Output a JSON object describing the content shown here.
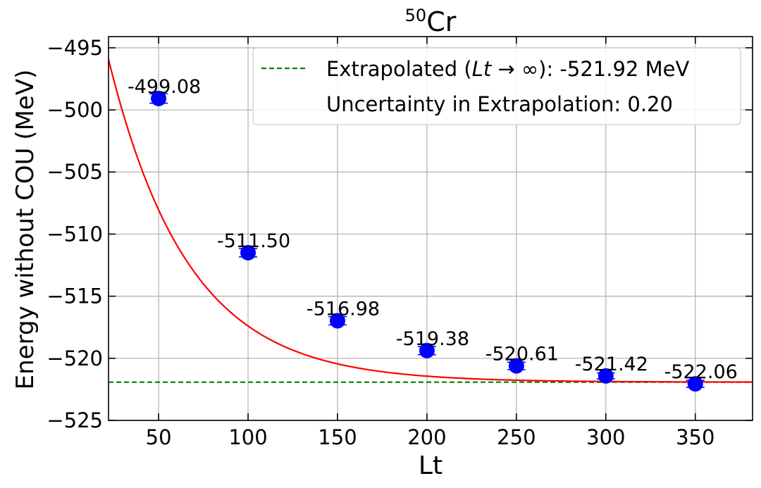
{
  "chart_data": {
    "type": "scatter",
    "title_superscript": "50",
    "title_main": "Cr",
    "xlabel": "Lt",
    "ylabel": "Energy without COU (MeV)",
    "xlim": [
      22,
      382
    ],
    "ylim": [
      -525,
      -494.1
    ],
    "xticks": [
      50,
      100,
      150,
      200,
      250,
      300,
      350
    ],
    "yticks": [
      -525,
      -520,
      -515,
      -510,
      -505,
      -500,
      -495
    ],
    "tick_labels_x": [
      "50",
      "100",
      "150",
      "200",
      "250",
      "300",
      "350"
    ],
    "tick_labels_y": [
      "−525",
      "−520",
      "−515",
      "−510",
      "−505",
      "−500",
      "−495"
    ],
    "grid": true,
    "points": {
      "x": [
        50,
        100,
        150,
        200,
        250,
        300,
        350
      ],
      "y": [
        -499.08,
        -511.5,
        -516.98,
        -519.38,
        -520.61,
        -521.42,
        -522.06
      ],
      "yerr": [
        0.38,
        0.34,
        0.33,
        0.33,
        0.3,
        0.24,
        0.28
      ],
      "labels": [
        "-499.08",
        "-511.50",
        "-516.98",
        "-519.38",
        "-520.61",
        "-521.42",
        "-522.06"
      ],
      "color": "#0000ff"
    },
    "fit_curve": {
      "formula": "y = a + b * exp(-x / c)",
      "a": -521.92,
      "b": 42.55,
      "c": 44.6,
      "color": "#ff0000"
    },
    "extrapolated": {
      "value": -521.92,
      "color": "#008000"
    },
    "legend": {
      "placement": "top-right",
      "line1_prefix": "Extrapolated (",
      "line1_math": "Lt",
      "line1_arrow": " → ∞",
      "line1_suffix": "): -521.92 MeV",
      "line2": "Uncertainty in Extrapolation: 0.20"
    }
  }
}
